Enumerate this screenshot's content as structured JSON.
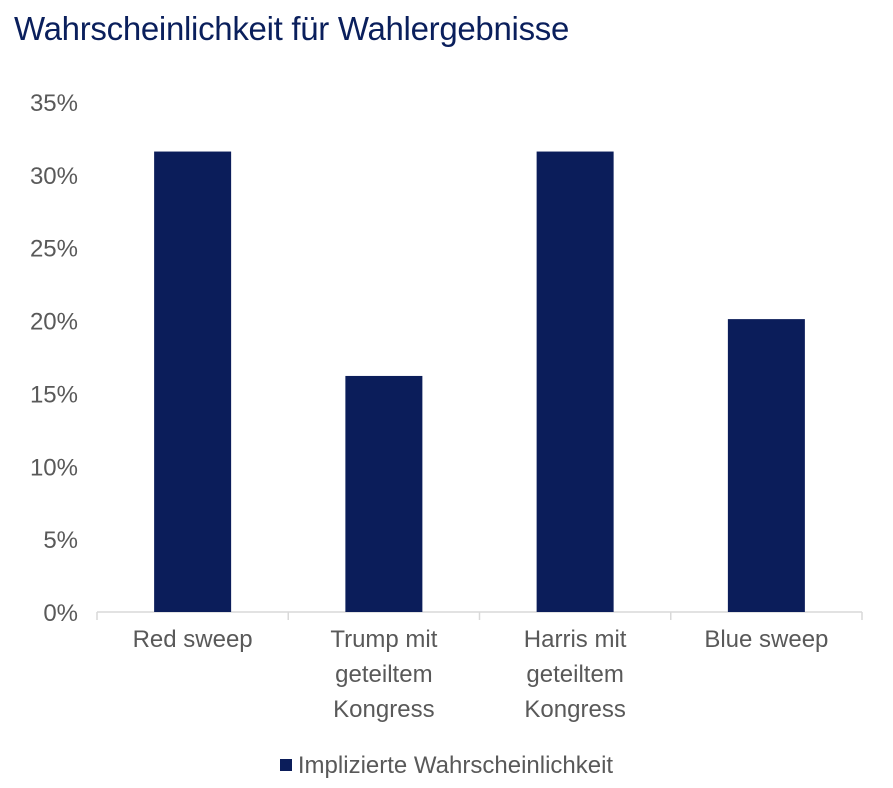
{
  "chart_data": {
    "type": "bar",
    "title": "Wahrscheinlichkeit für Wahlergebnisse",
    "categories": [
      "Red sweep",
      "Trump mit geteiltem Kongress",
      "Harris mit geteiltem Kongress",
      "Blue sweep"
    ],
    "category_lines": [
      [
        "Red sweep"
      ],
      [
        "Trump mit",
        "geteiltem",
        "Kongress"
      ],
      [
        "Harris mit",
        "geteiltem",
        "Kongress"
      ],
      [
        "Blue sweep"
      ]
    ],
    "series": [
      {
        "name": "Implizierte Wahrscheinlichkeit",
        "values": [
          31.6,
          16.2,
          31.6,
          20.1
        ],
        "color": "#0b1d5a"
      }
    ],
    "yticks": [
      0,
      5,
      10,
      15,
      20,
      25,
      30,
      35
    ],
    "ytick_labels": [
      "0%",
      "5%",
      "10%",
      "15%",
      "20%",
      "25%",
      "30%",
      "35%"
    ],
    "ylim": [
      0,
      35
    ],
    "xlabel": "",
    "ylabel": "",
    "grid": false,
    "legend_position": "bottom"
  }
}
